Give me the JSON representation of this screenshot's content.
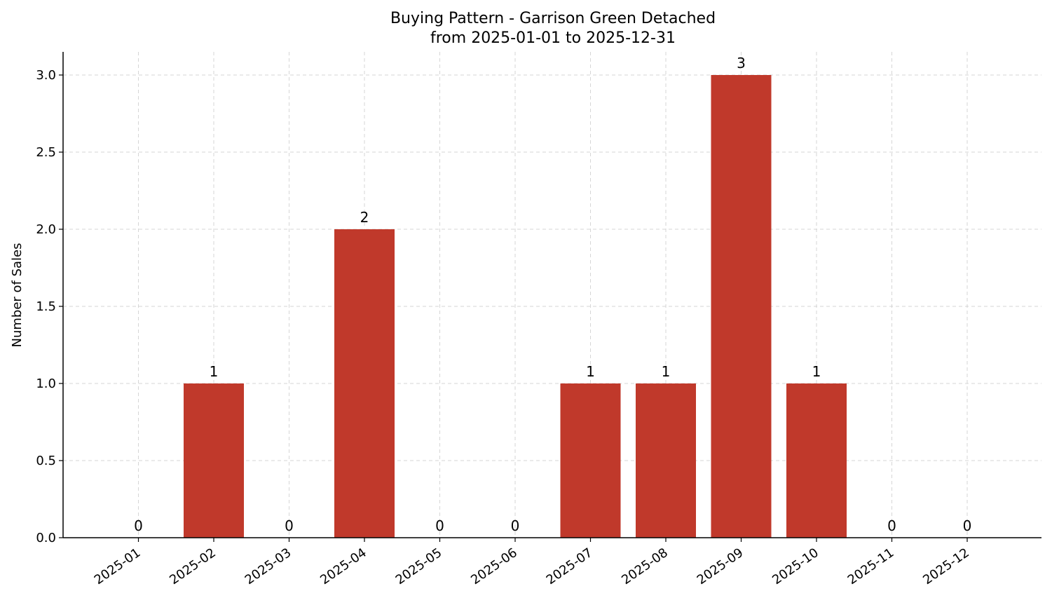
{
  "chart_data": {
    "type": "bar",
    "title": "Buying Pattern - Garrison Green Detached",
    "subtitle": "from 2025-01-01 to 2025-12-31",
    "xlabel": "",
    "ylabel": "Number of Sales",
    "categories": [
      "2025-01",
      "2025-02",
      "2025-03",
      "2025-04",
      "2025-05",
      "2025-06",
      "2025-07",
      "2025-08",
      "2025-09",
      "2025-10",
      "2025-11",
      "2025-12"
    ],
    "values": [
      0,
      1,
      0,
      2,
      0,
      0,
      1,
      1,
      3,
      1,
      0,
      0
    ],
    "data_labels": [
      "0",
      "1",
      "0",
      "2",
      "0",
      "0",
      "1",
      "1",
      "3",
      "1",
      "0",
      "0"
    ],
    "ylim": [
      0,
      3.15
    ],
    "yticks": [
      0.0,
      0.5,
      1.0,
      1.5,
      2.0,
      2.5,
      3.0
    ],
    "ytick_labels": [
      "0.0",
      "0.5",
      "1.0",
      "1.5",
      "2.0",
      "2.5",
      "3.0"
    ],
    "grid": true,
    "bar_color": "#c0392b"
  }
}
